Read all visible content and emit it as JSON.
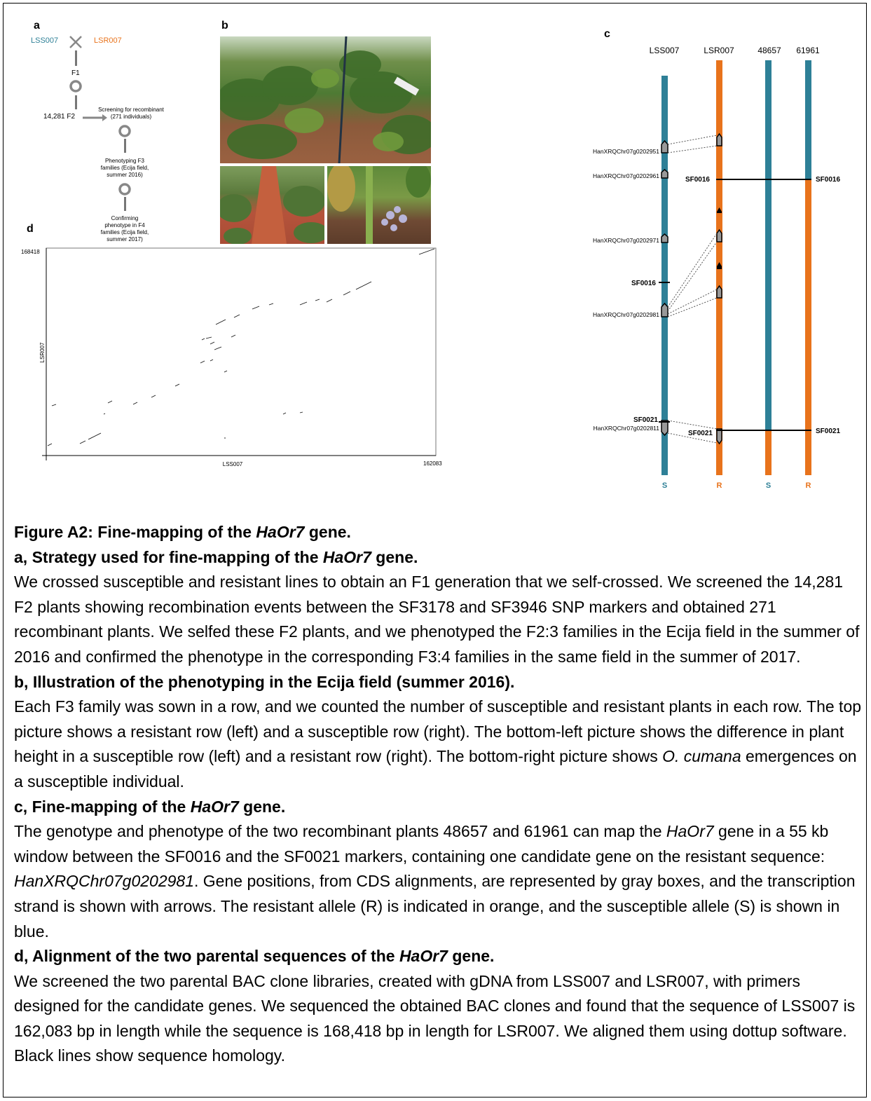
{
  "panel_a": {
    "label": "a",
    "parent_s": "LSS007",
    "parent_r": "LSR007",
    "f1": "F1",
    "f2": "14,281  F2",
    "screening": "Screening for recombinant\n(271 individuals)",
    "phenotyping": "Phenotyping F3\nfamilies (Ecija field,\nsummer 2016)",
    "confirming": "Confirming\nphenotype in F4\nfamilies (Ecija field,\nsummer 2017)"
  },
  "panel_b": {
    "label": "b"
  },
  "panel_c": {
    "label": "c",
    "columns": [
      "LSS007",
      "LSR007",
      "48657",
      "61961"
    ],
    "column_alleles": [
      "S",
      "R",
      "S",
      "R"
    ],
    "gene_labels": [
      "HanXRQChr07g0202951",
      "HanXRQChr07g0202961",
      "HanXRQChr07g0202971",
      "HanXRQChr07g0202981",
      "HanXRQChr07g0202811"
    ],
    "markers": {
      "sf0016": "SF0016",
      "sf0021": "SF0021"
    }
  },
  "panel_d": {
    "label": "d",
    "y_axis": "LSR007",
    "x_axis": "LSS007",
    "y_max": "168418",
    "x_max": "162083"
  },
  "colors": {
    "susceptible": "#2e8097",
    "resistant": "#e8731c"
  },
  "caption": {
    "title_pre": "Figure A2: Fine-mapping of the ",
    "title_em": "HaOr7",
    "title_post": " gene.",
    "a_head_pre": "a, Strategy used for fine-mapping of the ",
    "a_head_em": "HaOr7",
    "a_head_post": " gene.",
    "a_body": "We crossed susceptible and resistant lines to obtain an F1 generation that we self-crossed. We screened the 14,281 F2 plants showing recombination events between the SF3178 and SF3946 SNP markers and obtained 271 recombinant plants. We selfed these F2 plants, and we phenotyped the F2:3 families in the Ecija field in the summer of 2016 and confirmed the phenotype in the corresponding F3:4 families in the same field in the summer of 2017.",
    "b_head": "b, Illustration of the phenotyping in the Ecija field (summer 2016).",
    "b_body_pre": "Each F3 family was sown in a row, and we counted the number of susceptible and resistant plants in each row. The top picture shows a resistant row (left) and a susceptible row (right). The bottom-left picture shows the difference in plant height in a susceptible row (left) and a resistant row (right). The bottom-right picture shows ",
    "b_body_em": "O. cumana",
    "b_body_post": " emergences on a susceptible individual.",
    "c_head_pre": "c, Fine-mapping of the ",
    "c_head_em": "HaOr7",
    "c_head_post": " gene.",
    "c_body_1": "The genotype and phenotype of the two recombinant plants 48657 and 61961 can map the ",
    "c_body_em1": "HaOr7",
    "c_body_2": " gene in a 55 kb window between the SF0016 and the SF0021 markers, containing one candidate gene on the resistant sequence: ",
    "c_body_em2": "HanXRQChr07g0202981",
    "c_body_3": ". Gene positions, from CDS alignments, are represented by gray boxes, and the transcription strand is shown with arrows. The resistant allele (R) is indicated in orange, and the susceptible allele (S) is shown in blue.",
    "d_head_pre": "d, Alignment of the two parental sequences of the ",
    "d_head_em": "HaOr7",
    "d_head_post": " gene.",
    "d_body": "We screened the two parental BAC clone libraries, created with gDNA from LSS007 and LSR007, with primers designed for the candidate genes. We sequenced the obtained BAC clones and found that the sequence of LSS007 is 162,083 bp in length while the sequence is 168,418 bp in length for LSR007. We aligned them using dottup software. Black lines show sequence homology."
  }
}
